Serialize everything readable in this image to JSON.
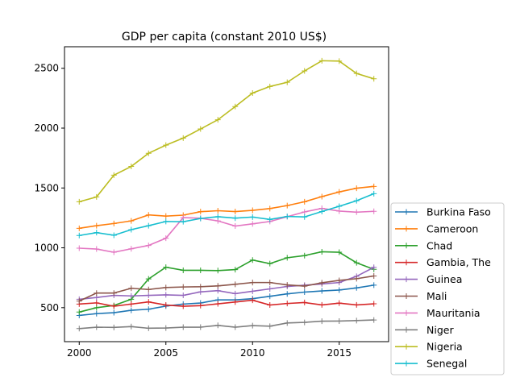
{
  "chart_data": {
    "type": "line",
    "title": "GDP per capita (constant 2010 US$)",
    "xlabel": "",
    "ylabel": "",
    "xlim": [
      1999.15,
      2017.85
    ],
    "ylim": [
      216,
      2680
    ],
    "xticks": [
      2000,
      2005,
      2010,
      2015
    ],
    "yticks": [
      500,
      1000,
      1500,
      2000,
      2500
    ],
    "grid": false,
    "legend_position": "lower-right outside",
    "x": [
      2000,
      2001,
      2002,
      2003,
      2004,
      2005,
      2006,
      2007,
      2008,
      2009,
      2010,
      2011,
      2012,
      2013,
      2014,
      2015,
      2016,
      2017
    ],
    "series": [
      {
        "name": "Burkina Faso",
        "color": "#1f77b4",
        "values": [
          435,
          450,
          458,
          478,
          487,
          513,
          530,
          539,
          565,
          565,
          575,
          595,
          615,
          630,
          640,
          647,
          665,
          688
        ]
      },
      {
        "name": "Cameroon",
        "color": "#ff7f0e",
        "values": [
          1163,
          1185,
          1203,
          1225,
          1275,
          1265,
          1273,
          1302,
          1310,
          1303,
          1313,
          1328,
          1353,
          1385,
          1428,
          1467,
          1498,
          1513
        ]
      },
      {
        "name": "Chad",
        "color": "#2ca02c",
        "values": [
          463,
          500,
          518,
          570,
          740,
          838,
          812,
          812,
          810,
          818,
          898,
          868,
          917,
          935,
          967,
          963,
          875,
          820
        ]
      },
      {
        "name": "Gambia, The",
        "color": "#d62728",
        "values": [
          530,
          540,
          512,
          530,
          548,
          522,
          512,
          517,
          532,
          547,
          562,
          522,
          535,
          543,
          523,
          538,
          523,
          532
        ]
      },
      {
        "name": "Guinea",
        "color": "#9467bd",
        "values": [
          570,
          585,
          603,
          598,
          603,
          607,
          603,
          632,
          642,
          617,
          637,
          657,
          677,
          688,
          698,
          710,
          762,
          837
        ]
      },
      {
        "name": "Mali",
        "color": "#8c564b",
        "values": [
          555,
          622,
          622,
          662,
          652,
          668,
          673,
          675,
          682,
          695,
          710,
          710,
          690,
          680,
          708,
          728,
          742,
          765
        ]
      },
      {
        "name": "Mauritania",
        "color": "#e377c2",
        "values": [
          997,
          990,
          963,
          992,
          1020,
          1080,
          1252,
          1247,
          1225,
          1182,
          1200,
          1220,
          1260,
          1300,
          1330,
          1307,
          1298,
          1305
        ]
      },
      {
        "name": "Niger",
        "color": "#7f7f7f",
        "values": [
          325,
          337,
          335,
          342,
          328,
          330,
          337,
          337,
          352,
          337,
          350,
          345,
          372,
          377,
          387,
          388,
          392,
          397
        ]
      },
      {
        "name": "Nigeria",
        "color": "#bcbd22",
        "values": [
          1385,
          1425,
          1607,
          1680,
          1790,
          1858,
          1917,
          1993,
          2070,
          2180,
          2293,
          2348,
          2383,
          2478,
          2563,
          2560,
          2457,
          2412
        ]
      },
      {
        "name": "Senegal",
        "color": "#17becf",
        "values": [
          1103,
          1127,
          1105,
          1152,
          1185,
          1220,
          1218,
          1245,
          1260,
          1248,
          1257,
          1237,
          1262,
          1258,
          1303,
          1347,
          1393,
          1452
        ]
      }
    ]
  }
}
